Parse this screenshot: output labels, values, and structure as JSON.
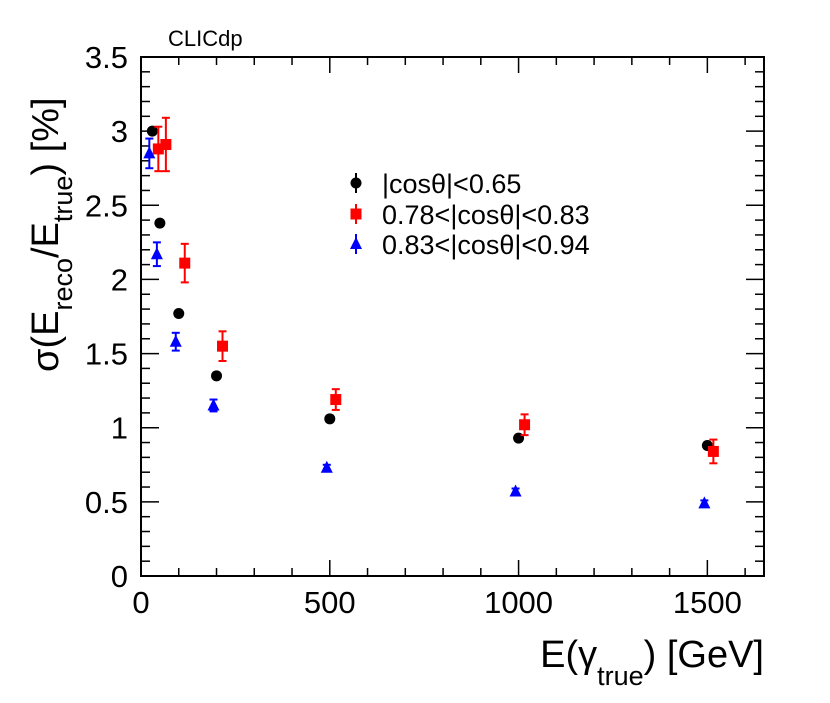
{
  "chart_data": {
    "type": "scatter",
    "watermark": "CLICdp",
    "xlabel": {
      "main": "E(",
      "sym": "γ",
      "sub": "true",
      "tail": ") [GeV]"
    },
    "ylabel": {
      "p1": "σ(E",
      "sub1": "reco",
      "p2": "/E",
      "sub2": "true",
      "p3": ") [%]"
    },
    "xlim": [
      0,
      1650
    ],
    "ylim": [
      0,
      3.5
    ],
    "xticks": [
      0,
      500,
      1000,
      1500
    ],
    "xtick_labels": [
      "0",
      "500",
      "1000",
      "1500"
    ],
    "yticks": [
      0,
      0.5,
      1,
      1.5,
      2,
      2.5,
      3,
      3.5
    ],
    "ytick_labels": [
      "0",
      "0.5",
      "1",
      "1.5",
      "2",
      "2.5",
      "3",
      "3.5"
    ],
    "legend_position": "upper-center",
    "series": [
      {
        "name": "|cosθ|<0.65",
        "marker": "circle",
        "color": "#000000",
        "x": [
          30,
          50,
          100,
          200,
          500,
          1000,
          1500
        ],
        "y": [
          3.0,
          2.38,
          1.77,
          1.35,
          1.06,
          0.93,
          0.88
        ],
        "err": [
          0.02,
          0.02,
          0.02,
          0.02,
          0.02,
          0.02,
          0.02
        ]
      },
      {
        "name": "0.78<|cosθ|<0.83",
        "marker": "square",
        "color": "#ff0000",
        "x": [
          30,
          50,
          100,
          200,
          500,
          1000,
          1500
        ],
        "y": [
          2.88,
          2.91,
          2.11,
          1.55,
          1.19,
          1.02,
          0.84
        ],
        "err": [
          0.15,
          0.18,
          0.13,
          0.1,
          0.07,
          0.07,
          0.08
        ]
      },
      {
        "name": "0.83<|cosθ|<0.94",
        "marker": "triangle",
        "color": "#0000ff",
        "x": [
          30,
          50,
          100,
          200,
          500,
          1000,
          1500
        ],
        "y": [
          2.85,
          2.17,
          1.58,
          1.15,
          0.73,
          0.57,
          0.49
        ],
        "err": [
          0.1,
          0.08,
          0.06,
          0.04,
          0.02,
          0.02,
          0.02
        ]
      }
    ]
  }
}
